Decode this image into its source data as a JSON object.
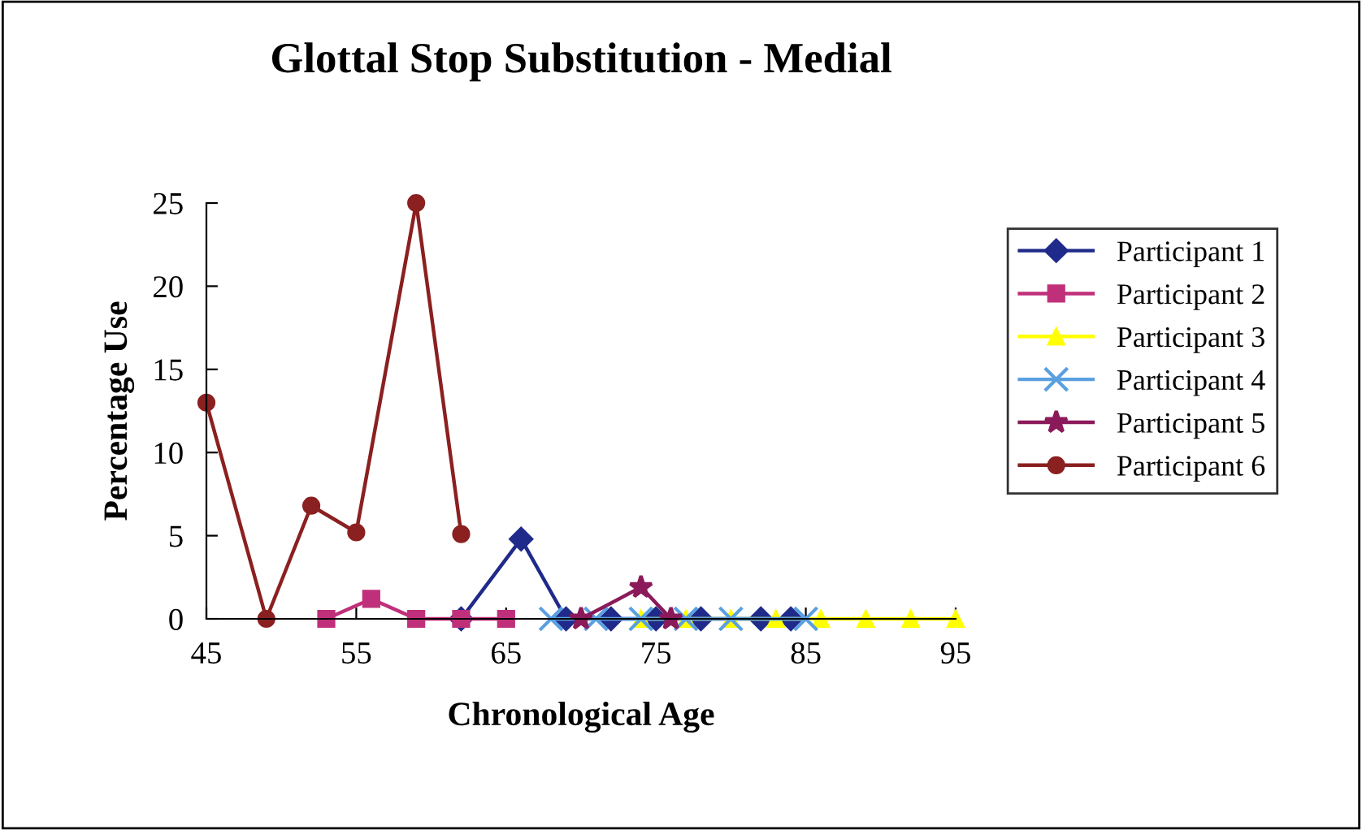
{
  "chart_data": {
    "type": "line",
    "title": "Glottal Stop Substitution - Medial",
    "xlabel": "Chronological Age",
    "ylabel": "Percentage Use",
    "xlim": [
      45,
      95
    ],
    "xticks": [
      45,
      55,
      65,
      75,
      85,
      95
    ],
    "ylim": [
      0,
      25
    ],
    "yticks": [
      0,
      5,
      10,
      15,
      20,
      25
    ],
    "grid": false,
    "legend": "right",
    "series": [
      {
        "name": "Participant 1",
        "color": "#1f2a8a",
        "marker": "diamond",
        "x": [
          62,
          66,
          69,
          72,
          75,
          78,
          82,
          84
        ],
        "values": [
          0,
          4.8,
          0,
          0,
          0,
          0,
          0,
          0
        ]
      },
      {
        "name": "Participant 2",
        "color": "#c0307a",
        "marker": "square",
        "x": [
          53,
          56,
          59,
          62,
          65
        ],
        "values": [
          0,
          1.2,
          0,
          0,
          0
        ]
      },
      {
        "name": "Participant 3",
        "color": "#ffff00",
        "marker": "triangle",
        "x": [
          74,
          77,
          80,
          83,
          86,
          89,
          92,
          95
        ],
        "values": [
          0,
          0,
          0,
          0,
          0,
          0,
          0,
          0
        ]
      },
      {
        "name": "Participant 4",
        "color": "#5aa0e0",
        "marker": "cross",
        "x": [
          68,
          71,
          74,
          77,
          80,
          85
        ],
        "values": [
          0,
          0,
          0,
          0,
          0,
          0
        ]
      },
      {
        "name": "Participant 5",
        "color": "#8b1a5a",
        "marker": "star",
        "x": [
          70,
          74,
          76
        ],
        "values": [
          0,
          1.9,
          0
        ]
      },
      {
        "name": "Participant 6",
        "color": "#8b2020",
        "marker": "circle",
        "x": [
          45,
          49,
          52,
          55,
          59,
          62
        ],
        "values": [
          13,
          0,
          6.8,
          5.2,
          25,
          5.1
        ]
      }
    ]
  }
}
